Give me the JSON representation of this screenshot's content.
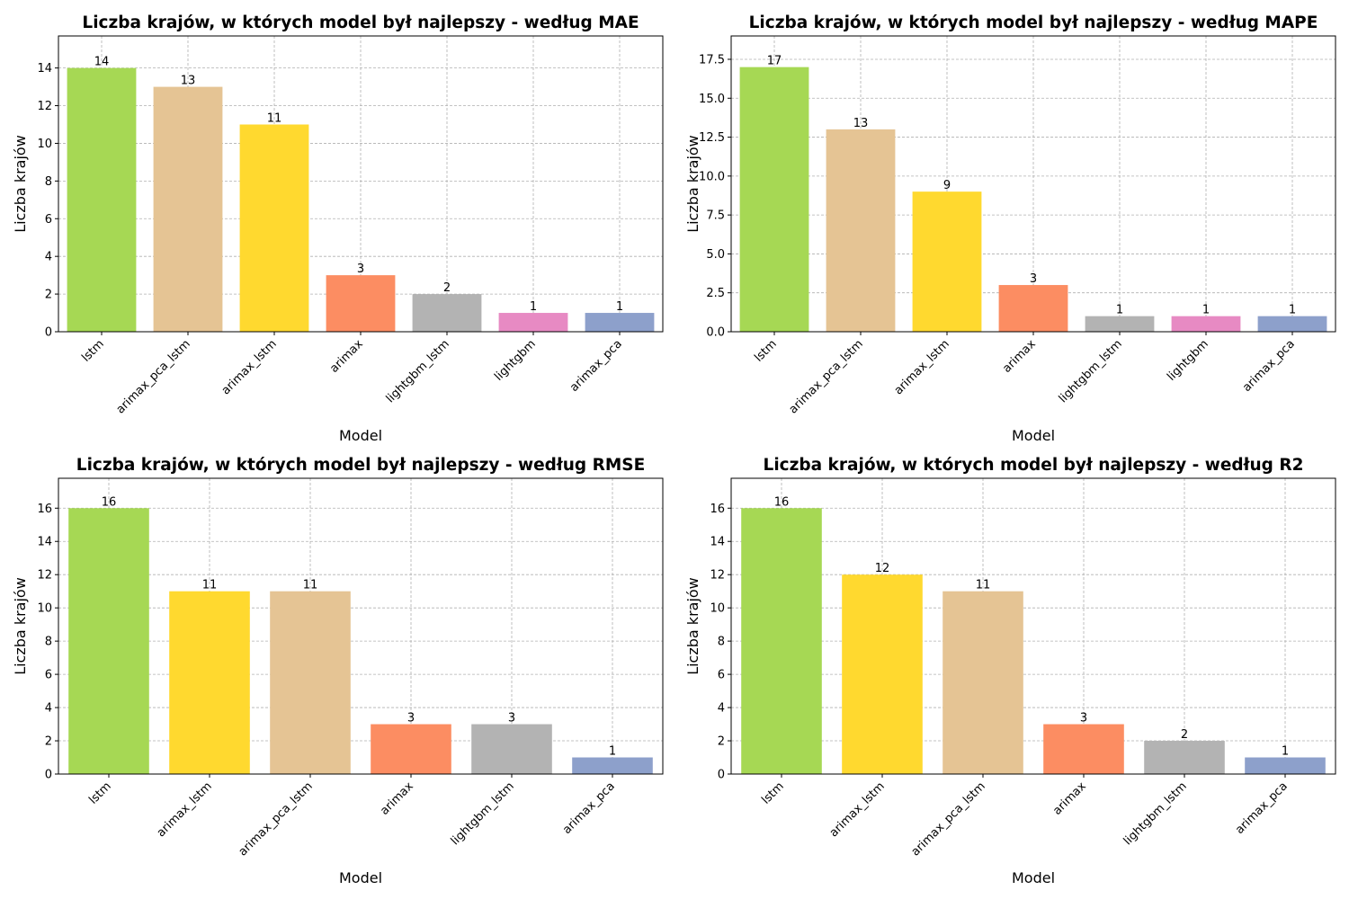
{
  "chart_data": [
    {
      "type": "bar",
      "title": "Liczba krajów, w których model był najlepszy - według MAE",
      "xlabel": "Model",
      "ylabel": "Liczba krajów",
      "categories": [
        "lstm",
        "arimax_pca_lstm",
        "arimax_lstm",
        "arimax",
        "lightgbm_lstm",
        "lightgbm",
        "arimax_pca"
      ],
      "values": [
        14,
        13,
        11,
        3,
        2,
        1,
        1
      ],
      "bar_labels": [
        "14",
        "13",
        "11",
        "3",
        "2",
        "1",
        "1"
      ],
      "colors": [
        "#a6d854",
        "#e5c494",
        "#ffd92f",
        "#fc8d62",
        "#b3b3b3",
        "#e78ac3",
        "#8da0cb"
      ],
      "ylim": [
        0,
        15.7
      ],
      "yticks": [
        0,
        2,
        4,
        6,
        8,
        10,
        12,
        14
      ],
      "ytick_labels": [
        "0",
        "2",
        "4",
        "6",
        "8",
        "10",
        "12",
        "14"
      ],
      "grid": true
    },
    {
      "type": "bar",
      "title": "Liczba krajów, w których model był najlepszy - według MAPE",
      "xlabel": "Model",
      "ylabel": "Liczba krajów",
      "categories": [
        "lstm",
        "arimax_pca_lstm",
        "arimax_lstm",
        "arimax",
        "lightgbm_lstm",
        "lightgbm",
        "arimax_pca"
      ],
      "values": [
        17,
        13,
        9,
        3,
        1,
        1,
        1
      ],
      "bar_labels": [
        "17",
        "13",
        "9",
        "3",
        "1",
        "1",
        "1"
      ],
      "colors": [
        "#a6d854",
        "#e5c494",
        "#ffd92f",
        "#fc8d62",
        "#b3b3b3",
        "#e78ac3",
        "#8da0cb"
      ],
      "ylim": [
        0,
        19.0
      ],
      "yticks": [
        0,
        2.5,
        5,
        7.5,
        10,
        12.5,
        15,
        17.5
      ],
      "ytick_labels": [
        "0.0",
        "2.5",
        "5.0",
        "7.5",
        "10.0",
        "12.5",
        "15.0",
        "17.5"
      ],
      "grid": true
    },
    {
      "type": "bar",
      "title": "Liczba krajów, w których model był najlepszy - według RMSE",
      "xlabel": "Model",
      "ylabel": "Liczba krajów",
      "categories": [
        "lstm",
        "arimax_lstm",
        "arimax_pca_lstm",
        "arimax",
        "lightgbm_lstm",
        "arimax_pca"
      ],
      "values": [
        16,
        11,
        11,
        3,
        3,
        1
      ],
      "bar_labels": [
        "16",
        "11",
        "11",
        "3",
        "3",
        "1"
      ],
      "colors": [
        "#a6d854",
        "#ffd92f",
        "#e5c494",
        "#fc8d62",
        "#b3b3b3",
        "#8da0cb"
      ],
      "ylim": [
        0,
        17.8
      ],
      "yticks": [
        0,
        2,
        4,
        6,
        8,
        10,
        12,
        14,
        16
      ],
      "ytick_labels": [
        "0",
        "2",
        "4",
        "6",
        "8",
        "10",
        "12",
        "14",
        "16"
      ],
      "grid": true
    },
    {
      "type": "bar",
      "title": "Liczba krajów, w których model był najlepszy - według R2",
      "xlabel": "Model",
      "ylabel": "Liczba krajów",
      "categories": [
        "lstm",
        "arimax_lstm",
        "arimax_pca_lstm",
        "arimax",
        "lightgbm_lstm",
        "arimax_pca"
      ],
      "values": [
        16,
        12,
        11,
        3,
        2,
        1
      ],
      "bar_labels": [
        "16",
        "12",
        "11",
        "3",
        "2",
        "1"
      ],
      "colors": [
        "#a6d854",
        "#ffd92f",
        "#e5c494",
        "#fc8d62",
        "#b3b3b3",
        "#8da0cb"
      ],
      "ylim": [
        0,
        17.8
      ],
      "yticks": [
        0,
        2,
        4,
        6,
        8,
        10,
        12,
        14,
        16
      ],
      "ytick_labels": [
        "0",
        "2",
        "4",
        "6",
        "8",
        "10",
        "12",
        "14",
        "16"
      ],
      "grid": true
    }
  ]
}
